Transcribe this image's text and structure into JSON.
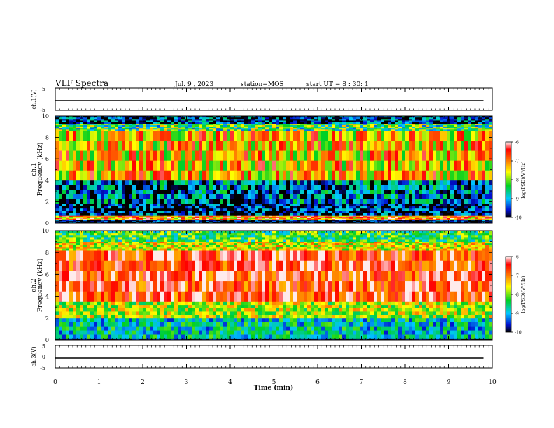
{
  "header": {
    "title": "VLF Spectra",
    "date": "Jul. 9 , 2023",
    "station": "station=MOS",
    "start": "start UT = 8 : 30: 1"
  },
  "chart_data": [
    {
      "type": "line",
      "panel": "ch1-waveform",
      "ylabel": "ch.1(V)",
      "ylim": [
        -5,
        5
      ],
      "yticks": [
        "5",
        "-5"
      ],
      "x": [
        0,
        9.8
      ],
      "y": [
        0,
        0
      ]
    },
    {
      "type": "heatmap",
      "panel": "ch1-spectrogram",
      "ylabel": "ch.1\nFrequency (kHz)",
      "ylim": [
        0,
        10
      ],
      "yticks": [
        "0",
        "2",
        "4",
        "6",
        "8",
        "10"
      ],
      "colorbar": {
        "label": "log(PSD)(V²/Hz)",
        "range": [
          -10,
          -6
        ],
        "ticks": [
          "-6",
          "-7",
          "-8",
          "-9",
          "-10"
        ]
      },
      "bands": [
        {
          "f": [
            0,
            0.3
          ],
          "level": -10
        },
        {
          "f": [
            0.3,
            0.7
          ],
          "level": -7
        },
        {
          "f": [
            0.7,
            1.8
          ],
          "level": -9.8
        },
        {
          "f": [
            1.8,
            4
          ],
          "level": -9.3
        },
        {
          "f": [
            4,
            8.6
          ],
          "level": -7.3
        },
        {
          "f": [
            8.6,
            9.3
          ],
          "level": -8.3
        },
        {
          "f": [
            9.3,
            10
          ],
          "level": -9.6
        }
      ]
    },
    {
      "type": "heatmap",
      "panel": "ch2-spectrogram",
      "ylabel": "ch.2\nFrequency (kHz)",
      "ylim": [
        0,
        10
      ],
      "yticks": [
        "0",
        "2",
        "4",
        "6",
        "8",
        "10"
      ],
      "colorbar": {
        "label": "log(PSD)(V²/Hz)",
        "range": [
          -10,
          -6
        ],
        "ticks": [
          "-6",
          "-7",
          "-8",
          "-9",
          "-10"
        ]
      },
      "bands": [
        {
          "f": [
            0,
            0.1
          ],
          "level": -10
        },
        {
          "f": [
            0.1,
            2
          ],
          "level": -8.8
        },
        {
          "f": [
            2,
            3.5
          ],
          "level": -7.8
        },
        {
          "f": [
            3.5,
            8.2
          ],
          "level": -6.5
        },
        {
          "f": [
            8.2,
            9
          ],
          "level": -7.6
        },
        {
          "f": [
            9,
            10
          ],
          "level": -8.3
        }
      ]
    },
    {
      "type": "line",
      "panel": "ch3-waveform",
      "ylabel": "ch.3(V)",
      "ylim": [
        -5,
        5
      ],
      "yticks": [
        "5",
        "0",
        "-5"
      ],
      "x": [
        0,
        9.8
      ],
      "y": [
        0,
        0
      ]
    }
  ],
  "time_axis": {
    "xlabel": "Time (min)",
    "xlim": [
      0,
      10
    ],
    "xticks": [
      "0",
      "1",
      "2",
      "3",
      "4",
      "5",
      "6",
      "7",
      "8",
      "9",
      "10"
    ]
  }
}
